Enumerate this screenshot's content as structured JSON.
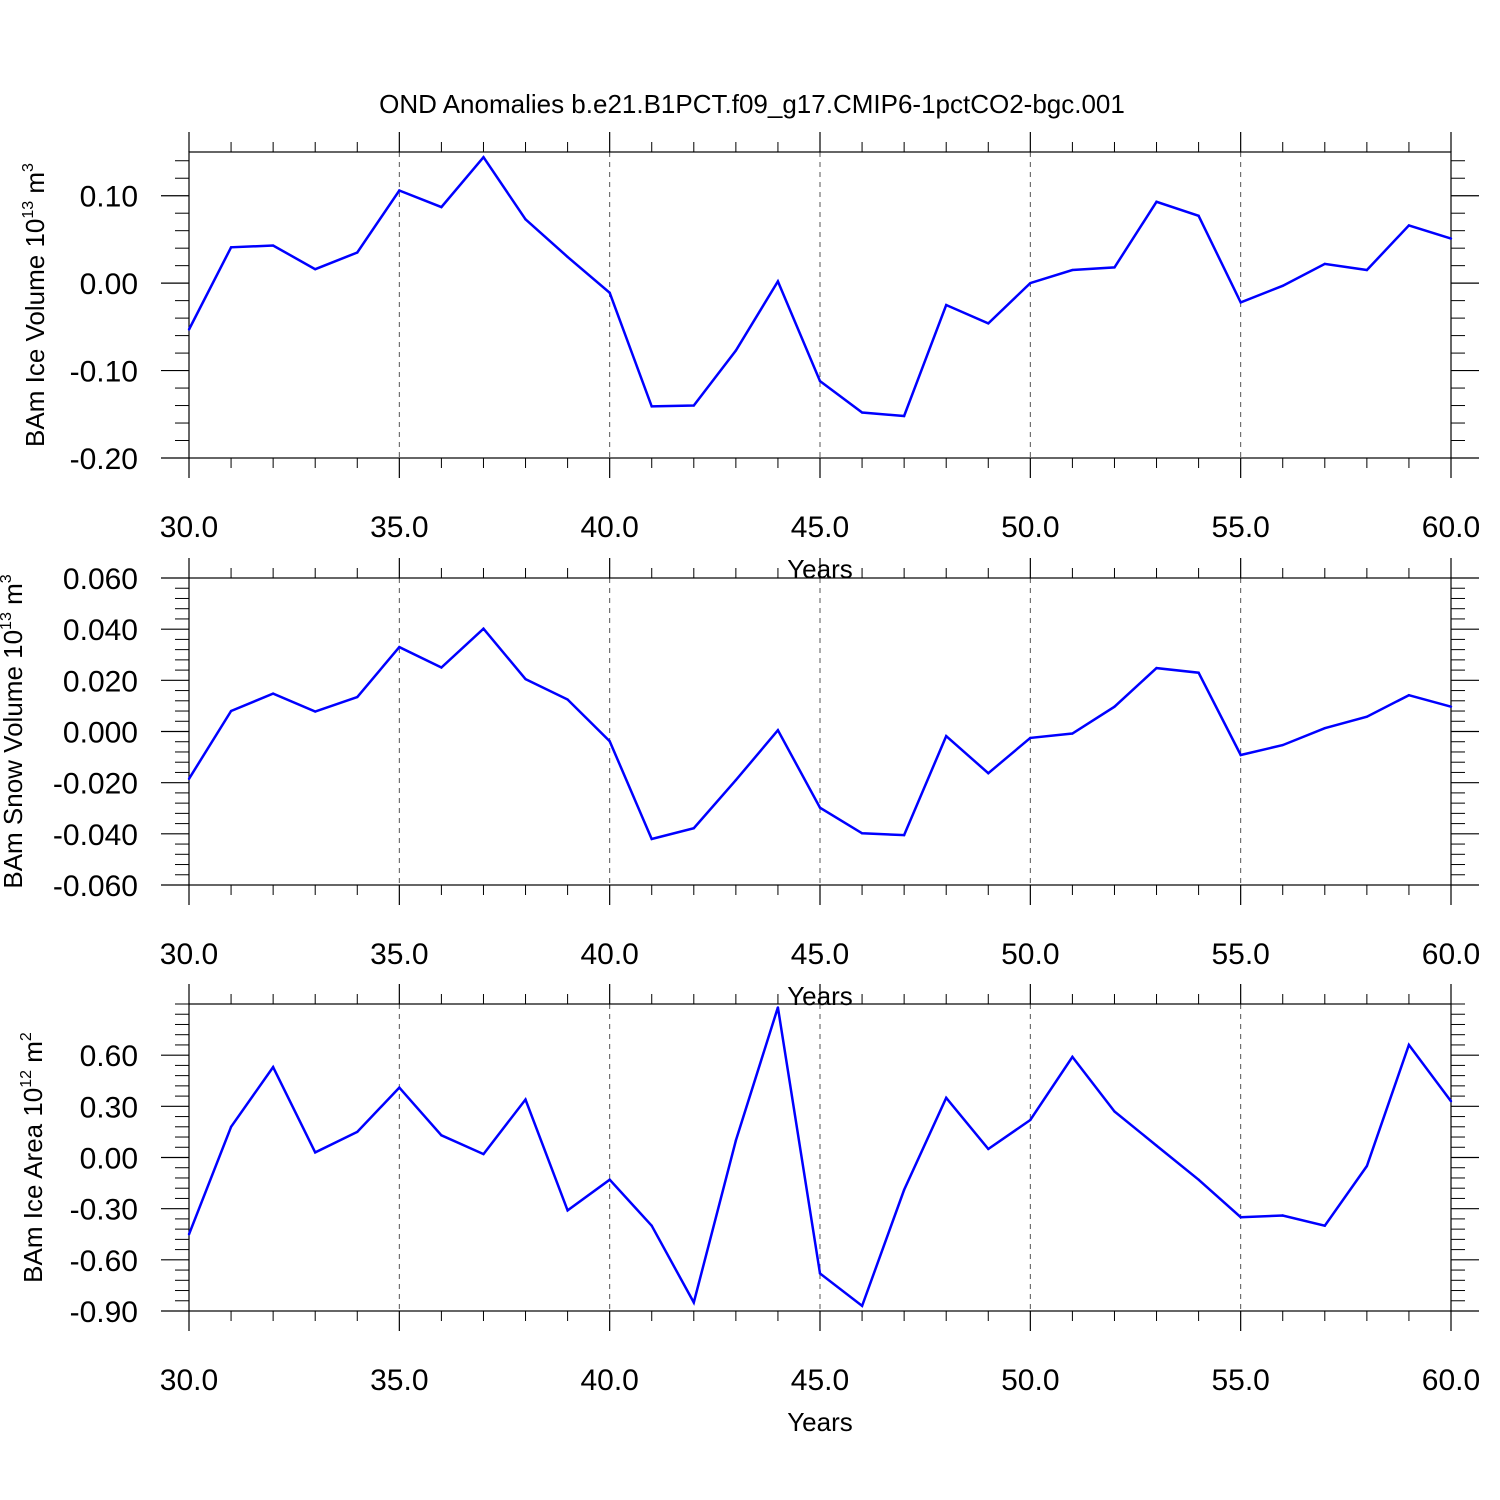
{
  "figure": {
    "title": "OND Anomalies b.e21.B1PCT.f09_g17.CMIP6-1pctCO2-bgc.001"
  },
  "chart_data": [
    {
      "type": "line",
      "panel": "ice-volume",
      "ylabel": {
        "prefix": "BAm Ice Volume 10",
        "exponent": "13",
        "unit": " m",
        "unit_exponent": "3"
      },
      "xlabel": "Years",
      "xlim": [
        30,
        60
      ],
      "ylim": [
        -0.2,
        0.15
      ],
      "x_ticks": [
        30,
        35,
        40,
        45,
        50,
        55,
        60
      ],
      "x_tick_labels": [
        "30.0",
        "35.0",
        "40.0",
        "45.0",
        "50.0",
        "55.0",
        "60.0"
      ],
      "y_ticks": [
        -0.2,
        -0.1,
        0.0,
        0.1
      ],
      "y_tick_labels": [
        "-0.20",
        "-0.10",
        "0.00",
        "0.10"
      ],
      "grid": "vertical dashed at major x ticks",
      "line_color": "#0000ff",
      "x": [
        30,
        31,
        32,
        33,
        34,
        35,
        36,
        37,
        38,
        39,
        40,
        41,
        42,
        43,
        44,
        45,
        46,
        47,
        48,
        49,
        50,
        51,
        52,
        53,
        54,
        55,
        56,
        57,
        58,
        59,
        60
      ],
      "values": [
        -0.053,
        0.041,
        0.043,
        0.016,
        0.035,
        0.106,
        0.087,
        0.144,
        0.073,
        0.03,
        -0.011,
        -0.141,
        -0.14,
        -0.077,
        0.002,
        -0.112,
        -0.148,
        -0.152,
        -0.025,
        -0.046,
        0.0,
        0.015,
        0.018,
        0.093,
        0.077,
        -0.022,
        -0.003,
        0.022,
        0.015,
        0.066,
        0.051
      ]
    },
    {
      "type": "line",
      "panel": "snow-volume",
      "ylabel": {
        "prefix": "BAm Snow Volume 10",
        "exponent": "13",
        "unit": " m",
        "unit_exponent": "3"
      },
      "xlabel": "Years",
      "xlim": [
        30,
        60
      ],
      "ylim": [
        -0.06,
        0.06
      ],
      "x_ticks": [
        30,
        35,
        40,
        45,
        50,
        55,
        60
      ],
      "x_tick_labels": [
        "30.0",
        "35.0",
        "40.0",
        "45.0",
        "50.0",
        "55.0",
        "60.0"
      ],
      "y_ticks": [
        -0.06,
        -0.04,
        -0.02,
        0.0,
        0.02,
        0.04,
        0.06
      ],
      "y_tick_labels": [
        "-0.060",
        "-0.040",
        "-0.020",
        "0.000",
        "0.020",
        "0.040",
        "0.060"
      ],
      "grid": "vertical dashed at major x ticks",
      "line_color": "#0000ff",
      "x": [
        30,
        31,
        32,
        33,
        34,
        35,
        36,
        37,
        38,
        39,
        40,
        41,
        42,
        43,
        44,
        45,
        46,
        47,
        48,
        49,
        50,
        51,
        52,
        53,
        54,
        55,
        56,
        57,
        58,
        59,
        60
      ],
      "values": [
        -0.0185,
        0.008,
        0.0148,
        0.0078,
        0.0135,
        0.033,
        0.025,
        0.0402,
        0.0205,
        0.0125,
        -0.0038,
        -0.042,
        -0.0378,
        -0.019,
        0.0005,
        -0.0298,
        -0.0398,
        -0.0405,
        -0.0018,
        -0.0163,
        -0.0025,
        -0.0008,
        0.0097,
        0.0248,
        0.023,
        -0.0092,
        -0.0053,
        0.0013,
        0.0058,
        0.0142,
        0.0097
      ]
    },
    {
      "type": "line",
      "panel": "ice-area",
      "ylabel": {
        "prefix": "BAm Ice Area 10",
        "exponent": "12",
        "unit": " m",
        "unit_exponent": "2"
      },
      "xlabel": "Years",
      "xlim": [
        30,
        60
      ],
      "ylim": [
        -0.9,
        0.9
      ],
      "x_ticks": [
        30,
        35,
        40,
        45,
        50,
        55,
        60
      ],
      "x_tick_labels": [
        "30.0",
        "35.0",
        "40.0",
        "45.0",
        "50.0",
        "55.0",
        "60.0"
      ],
      "y_ticks": [
        -0.9,
        -0.6,
        -0.3,
        0.0,
        0.3,
        0.6
      ],
      "y_tick_labels": [
        "-0.90",
        "-0.60",
        "-0.30",
        "0.00",
        "0.30",
        "0.60"
      ],
      "grid": "vertical dashed at major x ticks",
      "line_color": "#0000ff",
      "x": [
        30,
        31,
        32,
        33,
        34,
        35,
        36,
        37,
        38,
        39,
        40,
        41,
        42,
        43,
        44,
        45,
        46,
        47,
        48,
        49,
        50,
        51,
        52,
        53,
        54,
        55,
        56,
        57,
        58,
        59,
        60
      ],
      "values": [
        -0.45,
        0.18,
        0.53,
        0.03,
        0.15,
        0.41,
        0.13,
        0.02,
        0.34,
        -0.31,
        -0.13,
        -0.4,
        -0.85,
        0.1,
        0.88,
        -0.68,
        -0.87,
        -0.19,
        0.35,
        0.05,
        0.22,
        0.59,
        0.27,
        0.07,
        -0.13,
        -0.35,
        -0.34,
        -0.4,
        -0.05,
        0.66,
        0.33
      ]
    }
  ]
}
